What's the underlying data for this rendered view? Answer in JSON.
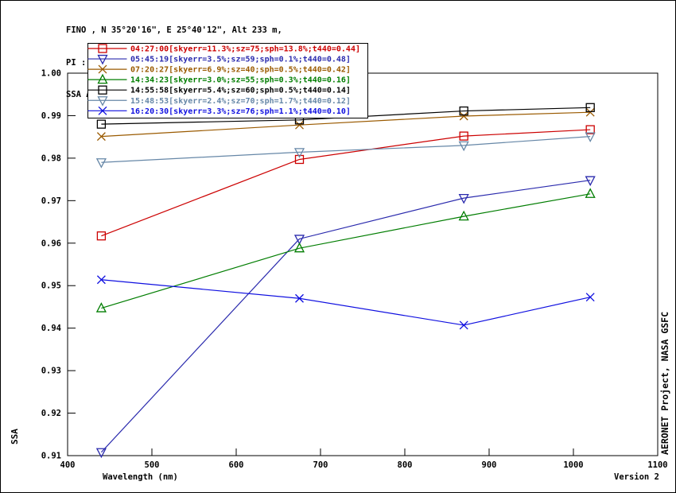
{
  "header": {
    "line1": "FINO , N 35°20'16\", E 25°40'12\", Alt 233 m,",
    "line2": "PI : Brent Holben, Brent.N.Holben@nasa.gov",
    "line3": "SSA Almucantar Level 1.5; 19 JUN 2014"
  },
  "footer": {
    "version": "Version 2"
  },
  "side": {
    "right_credit": "AERONET Project, NASA GSFC"
  },
  "chart_data": {
    "type": "line",
    "title": "SSA Almucantar Level 1.5; 19 JUN 2014",
    "xlabel": "Wavelength (nm)",
    "ylabel": "SSA",
    "x": [
      440,
      675,
      870,
      1020
    ],
    "xlim": [
      400,
      1100
    ],
    "ylim": [
      0.91,
      1.0
    ],
    "x_ticks": [
      400,
      500,
      600,
      700,
      800,
      900,
      1000,
      1100
    ],
    "y_ticks": [
      0.91,
      0.92,
      0.93,
      0.94,
      0.95,
      0.96,
      0.97,
      0.98,
      0.99,
      1.0
    ],
    "grid": false,
    "legend_position": "top-left",
    "series": [
      {
        "name": "04:27:00",
        "label": "04:27:00[skyerr=11.3%;sz=75;sph=13.8%;t440=0.44]",
        "color": "#cc0000",
        "marker": "square",
        "values": [
          0.9617,
          0.9797,
          0.9852,
          0.9867
        ]
      },
      {
        "name": "05:45:19",
        "label": "05:45:19[skyerr=3.5%;sz=59;sph=0.1%;t440=0.48]",
        "color": "#2a2aad",
        "marker": "triangle-down",
        "values": [
          0.9108,
          0.961,
          0.9706,
          0.9748
        ]
      },
      {
        "name": "07:20:27",
        "label": "07:20:27[skyerr=6.9%;sz=40;sph=0.5%;t440=0.42]",
        "color": "#9a5a00",
        "marker": "x",
        "values": [
          0.9851,
          0.9878,
          0.9899,
          0.9908
        ]
      },
      {
        "name": "14:34:23",
        "label": "14:34:23[skyerr=3.0%;sz=55;sph=0.3%;t440=0.16]",
        "color": "#007d00",
        "marker": "triangle-up",
        "values": [
          0.9447,
          0.9588,
          0.9663,
          0.9716
        ]
      },
      {
        "name": "14:55:58",
        "label": "14:55:58[skyerr=5.4%;sz=60;sph=0.5%;t440=0.14]",
        "color": "#000000",
        "marker": "square",
        "values": [
          0.988,
          0.989,
          0.9911,
          0.9919
        ]
      },
      {
        "name": "15:48:53",
        "label": "15:48:53[skyerr=2.4%;sz=70;sph=1.7%;t440=0.12]",
        "color": "#6687a7",
        "marker": "triangle-down",
        "values": [
          0.979,
          0.9814,
          0.983,
          0.9851
        ]
      },
      {
        "name": "16:20:30",
        "label": "16:20:30[skyerr=3.3%;sz=76;sph=1.1%;t440=0.10]",
        "color": "#0f0fe0",
        "marker": "x",
        "values": [
          0.9514,
          0.947,
          0.9407,
          0.9473
        ]
      }
    ]
  }
}
